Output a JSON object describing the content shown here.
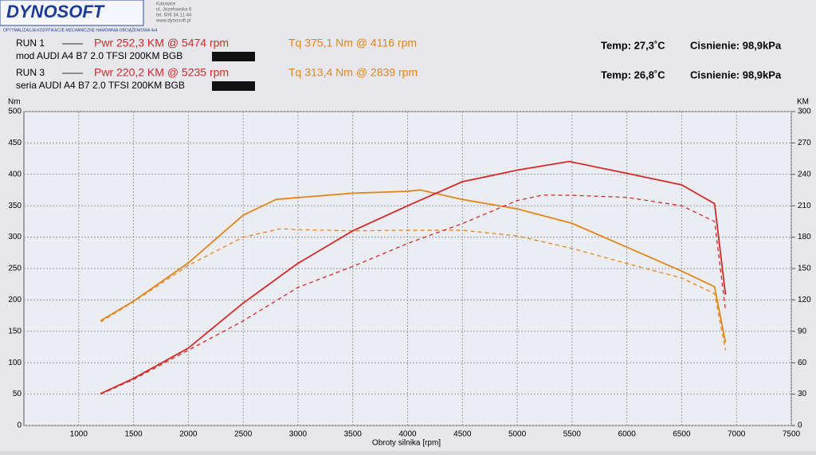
{
  "logo": {
    "name": "DYNOSOFT",
    "address": [
      "Katowice",
      "ul. Józefowska 6",
      "tel. 606 34 11 44",
      "www.dynosoft.pl"
    ],
    "tagline": "OPTYMALIZACJA   KODYFIKACJE MECHANICZNE   HAMOWNIA OBCIĄŻENIOWA 4x4"
  },
  "runs": [
    {
      "run": "RUN 1",
      "pwr": "Pwr  252,3 KM @ 5474 rpm",
      "tq": "Tq 375,1 Nm @ 4116 rpm",
      "temp": "Temp: 27,3˚C",
      "pressure": "Cisnienie: 98,9kPa",
      "desc": "mod AUDI A4 B7 2.0 TFSI 200KM BGB"
    },
    {
      "run": "RUN 3",
      "pwr": "Pwr  220,2 KM @ 5235 rpm",
      "tq": "Tq 313,4 Nm @ 2839 rpm",
      "temp": "Temp: 26,8˚C",
      "pressure": "Cisnienie: 98,9kPa",
      "desc": "seria AUDI A4 B7 2.0 TFSI 200KM BGB"
    }
  ],
  "chart_data": {
    "type": "line",
    "x_label": "Obroty silnika [rpm]",
    "y_label": "Nm",
    "y2_label": "KM",
    "grid": true,
    "xlim": [
      500,
      7500
    ],
    "xticks": [
      1000,
      1500,
      2000,
      2500,
      3000,
      3500,
      4000,
      4500,
      5000,
      5500,
      6000,
      6500,
      7000,
      7500
    ],
    "ylim": [
      0,
      500
    ],
    "yticks": [
      0,
      50,
      100,
      150,
      200,
      250,
      300,
      350,
      400,
      450,
      500
    ],
    "y2lim": [
      0,
      300
    ],
    "y2ticks": [
      0,
      30,
      60,
      90,
      120,
      150,
      180,
      210,
      240,
      270,
      300
    ],
    "series": [
      {
        "color": "#e2861c",
        "dashed": false,
        "x": [
          1200,
          1500,
          2000,
          2500,
          2800,
          3000,
          3500,
          4000,
          4116,
          4500,
          5000,
          5500,
          6000,
          6500,
          6800,
          6900
        ],
        "values": [
          167,
          198,
          259,
          335,
          360,
          363,
          370,
          373,
          375.1,
          360,
          345,
          322,
          284,
          246,
          221,
          132
        ]
      },
      {
        "color": "#e2861c",
        "dashed": true,
        "x": [
          1200,
          1500,
          2000,
          2500,
          2839,
          3000,
          3500,
          4000,
          4500,
          5000,
          5500,
          6000,
          6500,
          6800,
          6900
        ],
        "values": [
          165,
          197,
          255,
          300,
          313.4,
          312,
          310,
          311,
          311,
          302,
          282,
          258,
          235,
          210,
          120
        ]
      },
      {
        "color": "#d42a2a",
        "dashed": false,
        "axis": "y2",
        "x": [
          1200,
          1500,
          2000,
          2500,
          3000,
          3500,
          4000,
          4500,
          5000,
          5474,
          6000,
          6500,
          6800,
          6900
        ],
        "values": [
          30.5,
          45,
          74,
          117,
          155,
          186,
          210,
          233,
          244,
          252.3,
          241,
          230,
          212,
          125
        ]
      },
      {
        "color": "#d42a2a",
        "dashed": true,
        "axis": "y2",
        "x": [
          1200,
          1500,
          2000,
          2500,
          3000,
          3500,
          4000,
          4500,
          5000,
          5235,
          5500,
          6000,
          6500,
          6800,
          6900
        ],
        "values": [
          30,
          44,
          72,
          100,
          132,
          152,
          174,
          193,
          215,
          220.2,
          220,
          218,
          210,
          195,
          110
        ]
      }
    ]
  }
}
